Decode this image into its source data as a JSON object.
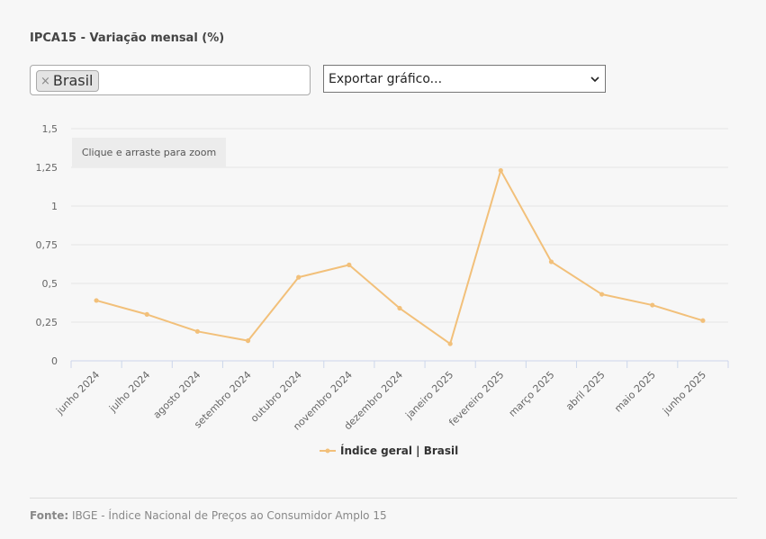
{
  "header": {
    "title": "IPCA15 - Variação mensal (%)"
  },
  "region_select": {
    "tag_remove": "×",
    "selected_tag": "Brasil"
  },
  "export_select": {
    "label": "Exportar gráfico..."
  },
  "zoom_hint": "Clique e arraste para zoom",
  "footer": {
    "source_label": "Fonte:",
    "source_text": "IBGE - Índice Nacional de Preços ao Consumidor Amplo 15"
  },
  "colors": {
    "series": "#f2c07a",
    "grid": "#e6e6e6",
    "axis": "#ccd6eb"
  },
  "chart_data": {
    "type": "line",
    "title": "IPCA15 - Variação mensal (%)",
    "categories": [
      "junho 2024",
      "julho 2024",
      "agosto 2024",
      "setembro 2024",
      "outubro 2024",
      "novembro 2024",
      "dezembro 2024",
      "janeiro 2025",
      "fevereiro 2025",
      "março 2025",
      "abril 2025",
      "maio 2025",
      "junho 2025"
    ],
    "series": [
      {
        "name": "Índice geral | Brasil",
        "values": [
          0.39,
          0.3,
          0.19,
          0.13,
          0.54,
          0.62,
          0.34,
          0.11,
          1.23,
          0.64,
          0.43,
          0.36,
          0.26
        ]
      }
    ],
    "yticks": [
      "0",
      "0,25",
      "0,5",
      "0,75",
      "1",
      "1,25",
      "1,5"
    ],
    "ylim": [
      0,
      1.5
    ],
    "grid": true,
    "legend_position": "bottom"
  }
}
